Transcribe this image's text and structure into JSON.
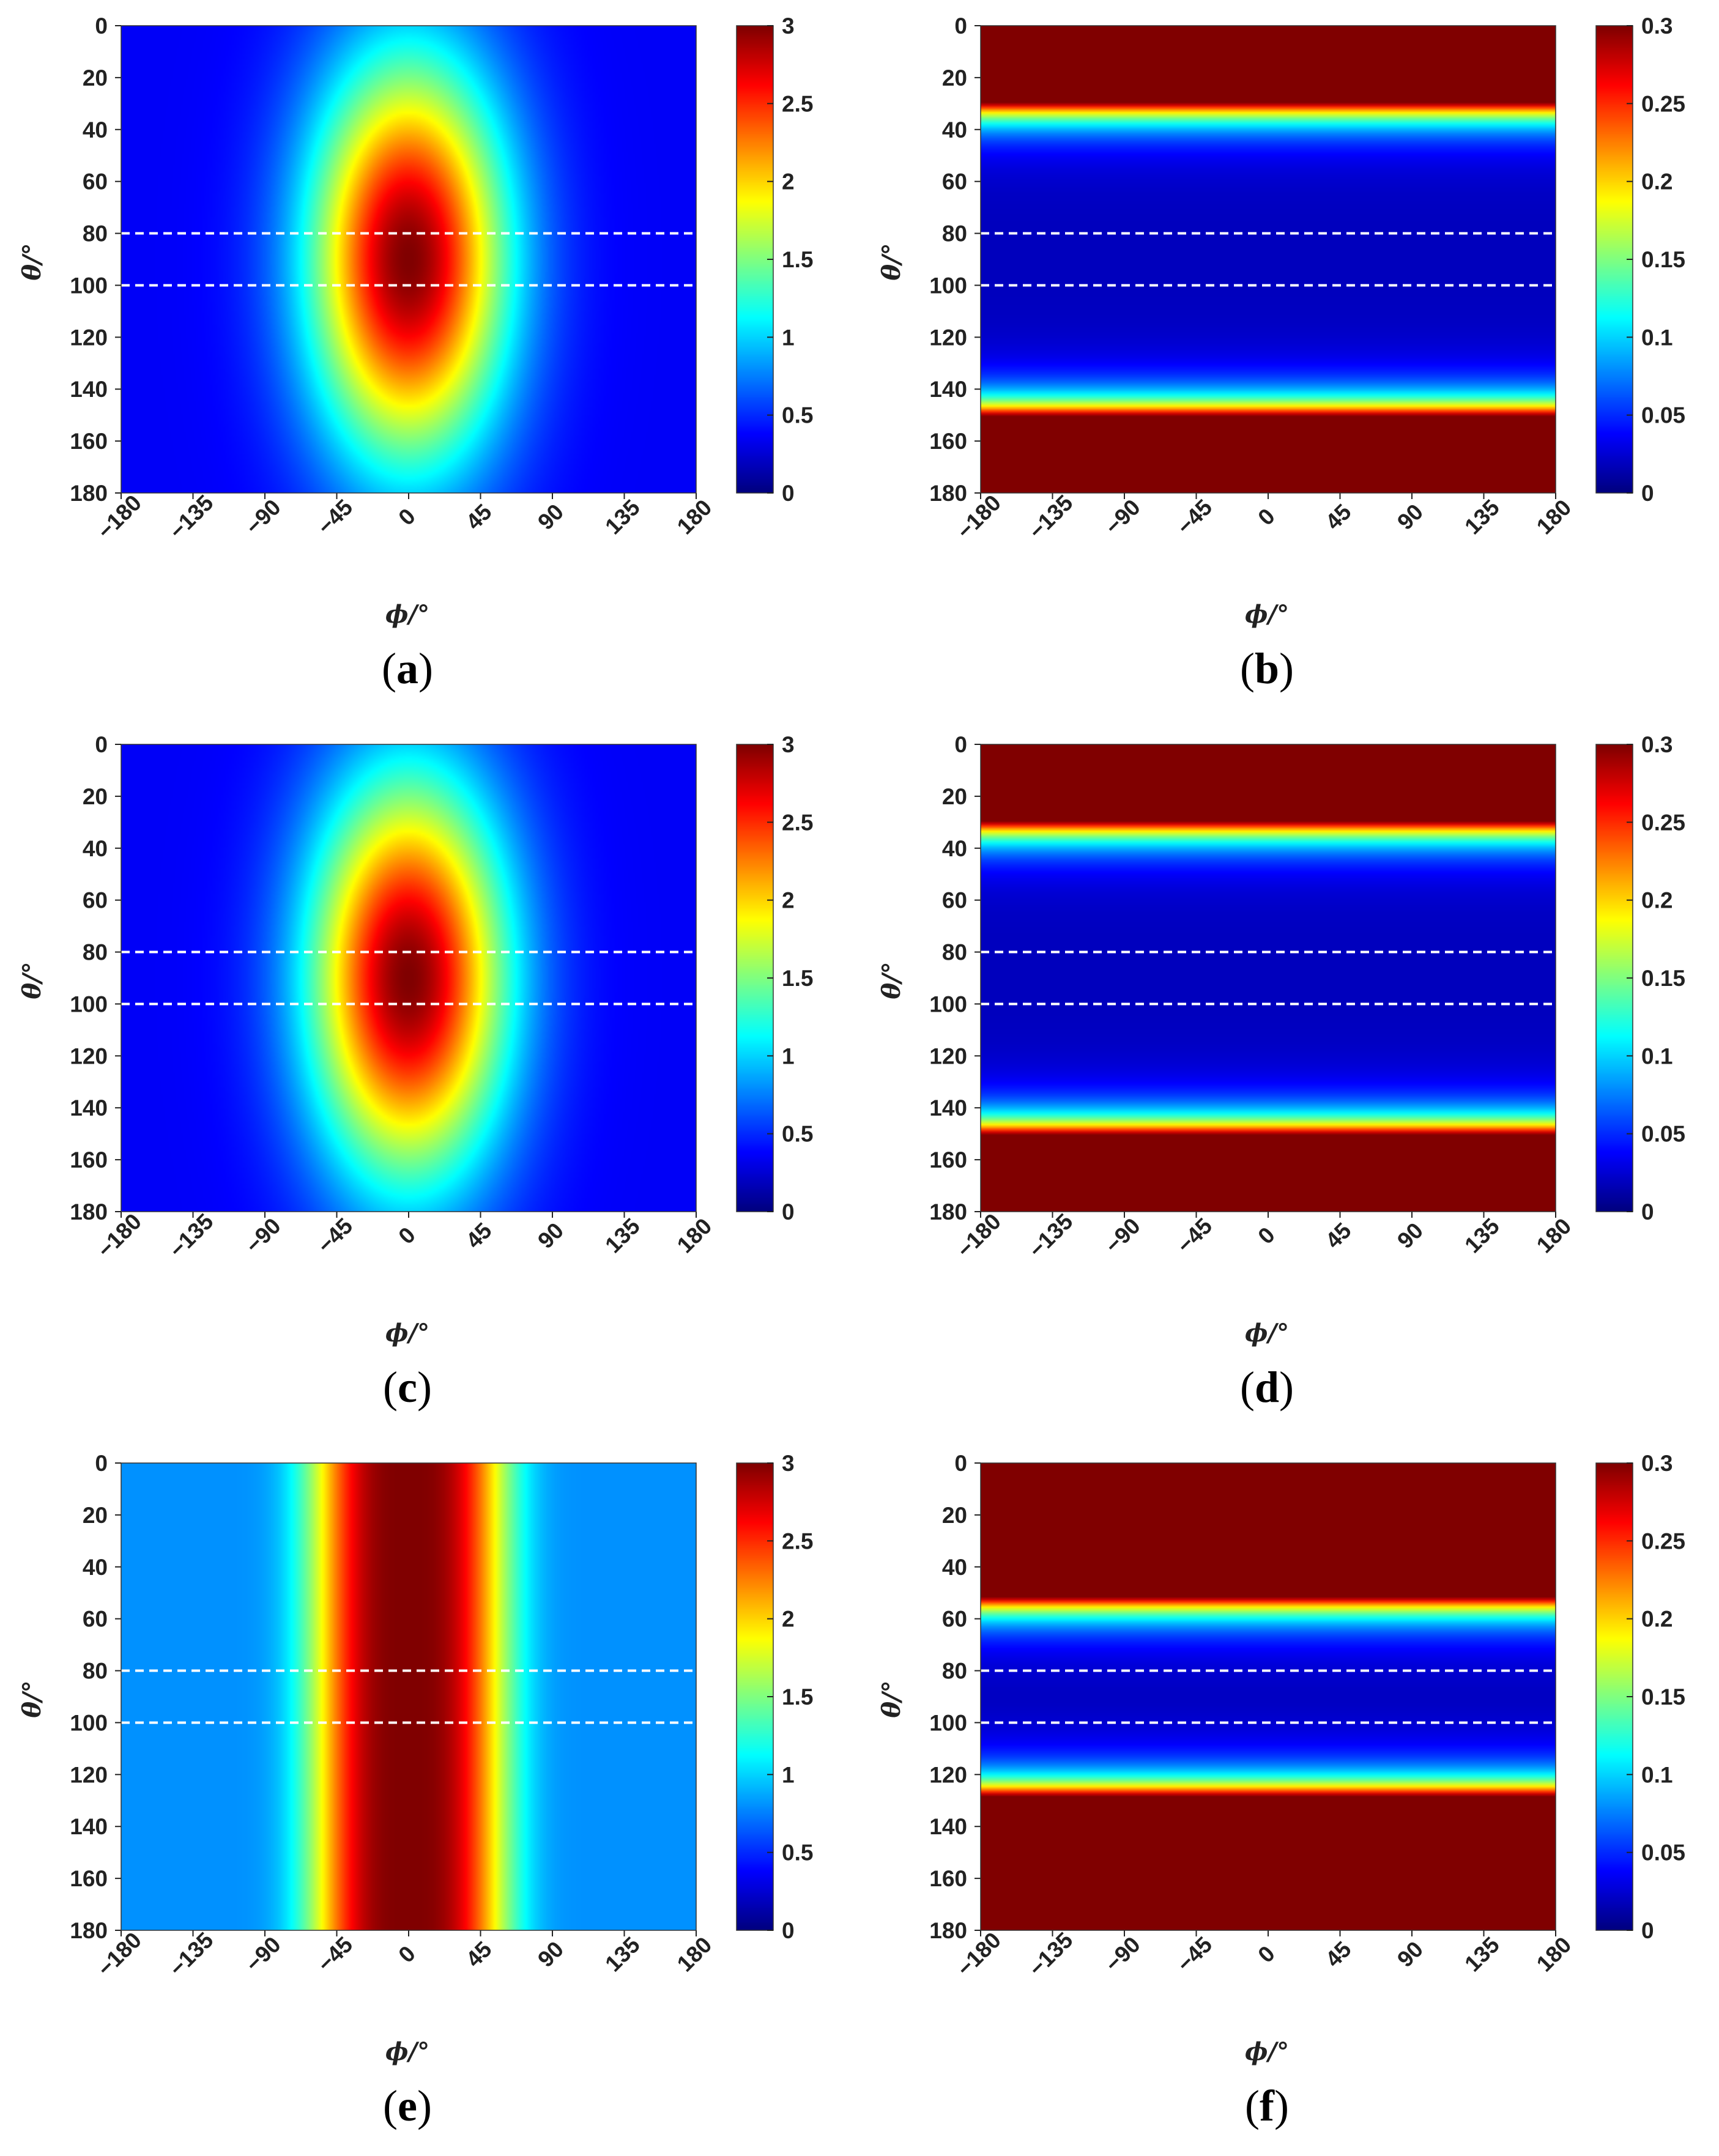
{
  "chart_data": [
    {
      "type": "heatmap",
      "panel": "(a)",
      "caption_letter": "a",
      "model": "ellipse",
      "peak_value": 3.0,
      "background_value": 0.35,
      "x_axis": {
        "label": "ϕ/°",
        "range": [
          -180,
          180
        ],
        "ticks": [
          "−180",
          "−135",
          "−90",
          "−45",
          "0",
          "45",
          "90",
          "135",
          "180"
        ],
        "tick_values": [
          -180,
          -135,
          -90,
          -45,
          0,
          45,
          90,
          135,
          180
        ]
      },
      "y_axis": {
        "label": "θ/°",
        "range": [
          0,
          180
        ],
        "reversed": true,
        "ticks": [
          "0",
          "20",
          "40",
          "60",
          "80",
          "100",
          "120",
          "140",
          "160",
          "180"
        ],
        "tick_values": [
          0,
          20,
          40,
          60,
          80,
          100,
          120,
          140,
          160,
          180
        ]
      },
      "colorbar": {
        "colormap": "jet",
        "range": [
          0,
          3
        ],
        "ticks": [
          "0",
          "0.5",
          "1",
          "1.5",
          "2",
          "2.5",
          "3"
        ],
        "tick_values": [
          0,
          0.5,
          1,
          1.5,
          2,
          2.5,
          3
        ]
      },
      "dashed_lines_theta": [
        80,
        100
      ]
    },
    {
      "type": "heatmap",
      "panel": "(b)",
      "caption_letter": "b",
      "model": "theta_band",
      "low_band_theta": [
        30,
        150
      ],
      "x_axis": {
        "label": "ϕ/°",
        "range": [
          -180,
          180
        ],
        "ticks": [
          "−180",
          "−135",
          "−90",
          "−45",
          "0",
          "45",
          "90",
          "135",
          "180"
        ],
        "tick_values": [
          -180,
          -135,
          -90,
          -45,
          0,
          45,
          90,
          135,
          180
        ]
      },
      "y_axis": {
        "label": "θ/°",
        "range": [
          0,
          180
        ],
        "reversed": true,
        "ticks": [
          "0",
          "20",
          "40",
          "60",
          "80",
          "100",
          "120",
          "140",
          "160",
          "180"
        ],
        "tick_values": [
          0,
          20,
          40,
          60,
          80,
          100,
          120,
          140,
          160,
          180
        ]
      },
      "colorbar": {
        "colormap": "jet",
        "range": [
          0,
          0.3
        ],
        "ticks": [
          "0",
          "0.05",
          "0.1",
          "0.15",
          "0.2",
          "0.25",
          "0.3"
        ],
        "tick_values": [
          0,
          0.05,
          0.1,
          0.15,
          0.2,
          0.25,
          0.3
        ]
      },
      "dashed_lines_theta": [
        80,
        100
      ]
    },
    {
      "type": "heatmap",
      "panel": "(c)",
      "caption_letter": "c",
      "model": "ellipse",
      "peak_value": 3.0,
      "background_value": 0.35,
      "x_axis": {
        "label": "ϕ/°",
        "range": [
          -180,
          180
        ],
        "ticks": [
          "−180",
          "−135",
          "−90",
          "−45",
          "0",
          "45",
          "90",
          "135",
          "180"
        ],
        "tick_values": [
          -180,
          -135,
          -90,
          -45,
          0,
          45,
          90,
          135,
          180
        ]
      },
      "y_axis": {
        "label": "θ/°",
        "range": [
          0,
          180
        ],
        "reversed": true,
        "ticks": [
          "0",
          "20",
          "40",
          "60",
          "80",
          "100",
          "120",
          "140",
          "160",
          "180"
        ],
        "tick_values": [
          0,
          20,
          40,
          60,
          80,
          100,
          120,
          140,
          160,
          180
        ]
      },
      "colorbar": {
        "colormap": "jet",
        "range": [
          0,
          3
        ],
        "ticks": [
          "0",
          "0.5",
          "1",
          "1.5",
          "2",
          "2.5",
          "3"
        ],
        "tick_values": [
          0,
          0.5,
          1,
          1.5,
          2,
          2.5,
          3
        ]
      },
      "dashed_lines_theta": [
        80,
        100
      ]
    },
    {
      "type": "heatmap",
      "panel": "(d)",
      "caption_letter": "d",
      "model": "theta_band",
      "low_band_theta": [
        30,
        150
      ],
      "x_axis": {
        "label": "ϕ/°",
        "range": [
          -180,
          180
        ],
        "ticks": [
          "−180",
          "−135",
          "−90",
          "−45",
          "0",
          "45",
          "90",
          "135",
          "180"
        ],
        "tick_values": [
          -180,
          -135,
          -90,
          -45,
          0,
          45,
          90,
          135,
          180
        ]
      },
      "y_axis": {
        "label": "θ/°",
        "range": [
          0,
          180
        ],
        "reversed": true,
        "ticks": [
          "0",
          "20",
          "40",
          "60",
          "80",
          "100",
          "120",
          "140",
          "160",
          "180"
        ],
        "tick_values": [
          0,
          20,
          40,
          60,
          80,
          100,
          120,
          140,
          160,
          180
        ]
      },
      "colorbar": {
        "colormap": "jet",
        "range": [
          0,
          0.3
        ],
        "ticks": [
          "0",
          "0.05",
          "0.1",
          "0.15",
          "0.2",
          "0.25",
          "0.3"
        ],
        "tick_values": [
          0,
          0.05,
          0.1,
          0.15,
          0.2,
          0.25,
          0.3
        ]
      },
      "dashed_lines_theta": [
        80,
        100
      ]
    },
    {
      "type": "heatmap",
      "panel": "(e)",
      "caption_letter": "e",
      "model": "phi_band",
      "peak_value": 3.0,
      "background_value": 0.8,
      "x_axis": {
        "label": "ϕ/°",
        "range": [
          -180,
          180
        ],
        "ticks": [
          "−180",
          "−135",
          "−90",
          "−45",
          "0",
          "45",
          "90",
          "135",
          "180"
        ],
        "tick_values": [
          -180,
          -135,
          -90,
          -45,
          0,
          45,
          90,
          135,
          180
        ]
      },
      "y_axis": {
        "label": "θ/°",
        "range": [
          0,
          180
        ],
        "reversed": true,
        "ticks": [
          "0",
          "20",
          "40",
          "60",
          "80",
          "100",
          "120",
          "140",
          "160",
          "180"
        ],
        "tick_values": [
          0,
          20,
          40,
          60,
          80,
          100,
          120,
          140,
          160,
          180
        ]
      },
      "colorbar": {
        "colormap": "jet",
        "range": [
          0,
          3
        ],
        "ticks": [
          "0",
          "0.5",
          "1",
          "1.5",
          "2",
          "2.5",
          "3"
        ],
        "tick_values": [
          0,
          0.5,
          1,
          1.5,
          2,
          2.5,
          3
        ]
      },
      "dashed_lines_theta": [
        80,
        100
      ]
    },
    {
      "type": "heatmap",
      "panel": "(f)",
      "caption_letter": "f",
      "model": "theta_band",
      "low_band_theta": [
        52,
        128
      ],
      "x_axis": {
        "label": "ϕ/°",
        "range": [
          -180,
          180
        ],
        "ticks": [
          "−180",
          "−135",
          "−90",
          "−45",
          "0",
          "45",
          "90",
          "135",
          "180"
        ],
        "tick_values": [
          -180,
          -135,
          -90,
          -45,
          0,
          45,
          90,
          135,
          180
        ]
      },
      "y_axis": {
        "label": "θ/°",
        "range": [
          0,
          180
        ],
        "reversed": true,
        "ticks": [
          "0",
          "20",
          "40",
          "60",
          "80",
          "100",
          "120",
          "140",
          "160",
          "180"
        ],
        "tick_values": [
          0,
          20,
          40,
          60,
          80,
          100,
          120,
          140,
          160,
          180
        ]
      },
      "colorbar": {
        "colormap": "jet",
        "range": [
          0,
          0.3
        ],
        "ticks": [
          "0",
          "0.05",
          "0.1",
          "0.15",
          "0.2",
          "0.25",
          "0.3"
        ],
        "tick_values": [
          0,
          0.05,
          0.1,
          0.15,
          0.2,
          0.25,
          0.3
        ]
      },
      "dashed_lines_theta": [
        80,
        100
      ]
    }
  ]
}
